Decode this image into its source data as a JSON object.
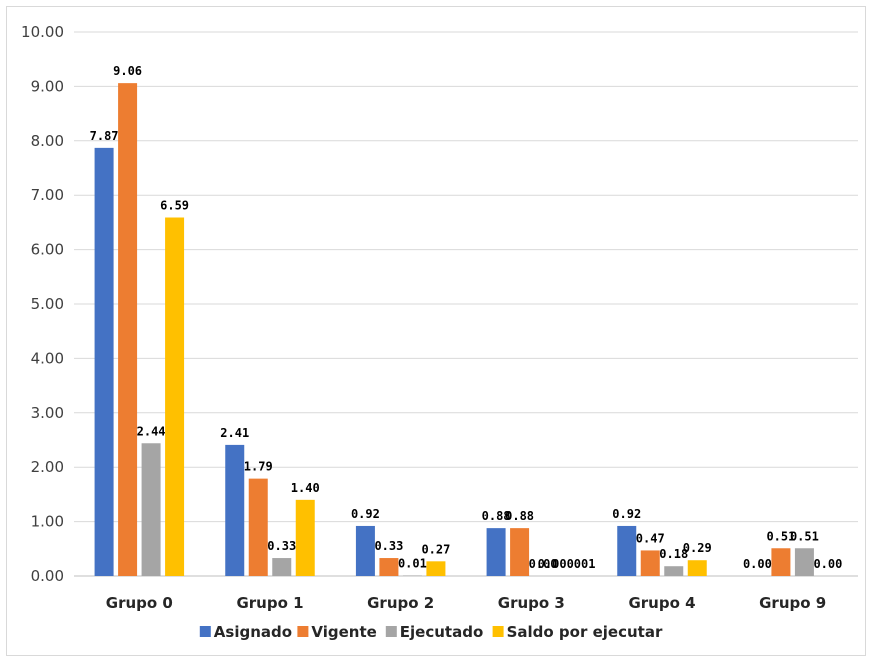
{
  "chart_data": {
    "type": "bar",
    "categories": [
      "Grupo 0",
      "Grupo 1",
      "Grupo 2",
      "Grupo 3",
      "Grupo 4",
      "Grupo 9"
    ],
    "series": [
      {
        "name": "Asignado",
        "color": "#4472C4",
        "values": [
          7.87,
          2.41,
          0.92,
          0.88,
          0.92,
          0.0
        ],
        "labels": [
          "7.87",
          "2.41",
          "0.92",
          "0.88",
          "0.92",
          "0.00"
        ]
      },
      {
        "name": "Vigente",
        "color": "#ED7D31",
        "values": [
          9.06,
          1.79,
          0.33,
          0.88,
          0.47,
          0.51
        ],
        "labels": [
          "9.06",
          "1.79",
          "0.33",
          "0.88",
          "0.47",
          "0.51"
        ]
      },
      {
        "name": "Ejecutado",
        "color": "#A5A5A5",
        "values": [
          2.44,
          0.33,
          0.01,
          0.0,
          0.18,
          0.51
        ],
        "labels": [
          "2.44",
          "0.33",
          "0.01",
          "0.00",
          "0.18",
          "0.51"
        ]
      },
      {
        "name": "Saldo por ejecutar",
        "color": "#FFC000",
        "values": [
          6.59,
          1.4,
          0.27,
          1e-06,
          0.29,
          0.0
        ],
        "labels": [
          "6.59",
          "1.40",
          "0.27",
          "0.000001",
          "0.29",
          "0.00"
        ]
      }
    ],
    "yticks": [
      "0.00",
      "1.00",
      "2.00",
      "3.00",
      "4.00",
      "5.00",
      "6.00",
      "7.00",
      "8.00",
      "9.00",
      "10.00"
    ],
    "ylim": [
      0,
      10
    ],
    "grid": true,
    "legend_position": "bottom"
  }
}
